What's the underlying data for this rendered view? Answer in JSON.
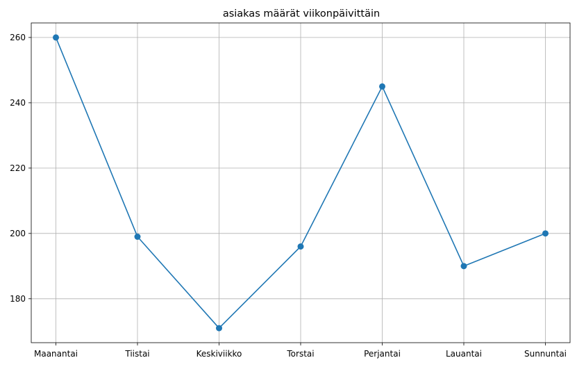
{
  "chart_data": {
    "type": "line",
    "title": "asiakas määrät viikonpäivittäin",
    "xlabel": "",
    "ylabel": "",
    "categories": [
      "Maanantai",
      "Tiistai",
      "Keskiviikko",
      "Torstai",
      "Perjantai",
      "Lauantai",
      "Sunnuntai"
    ],
    "series": [
      {
        "values": [
          260,
          199,
          171,
          196,
          245,
          190,
          200
        ]
      }
    ],
    "yticks": [
      180,
      200,
      220,
      240,
      260
    ],
    "ylim": [
      166.55,
      264.45
    ],
    "grid": true,
    "marker": "circle",
    "colors": {
      "line": "#1f77b4",
      "grid": "#b0b0b0",
      "axes": "#000000"
    }
  }
}
